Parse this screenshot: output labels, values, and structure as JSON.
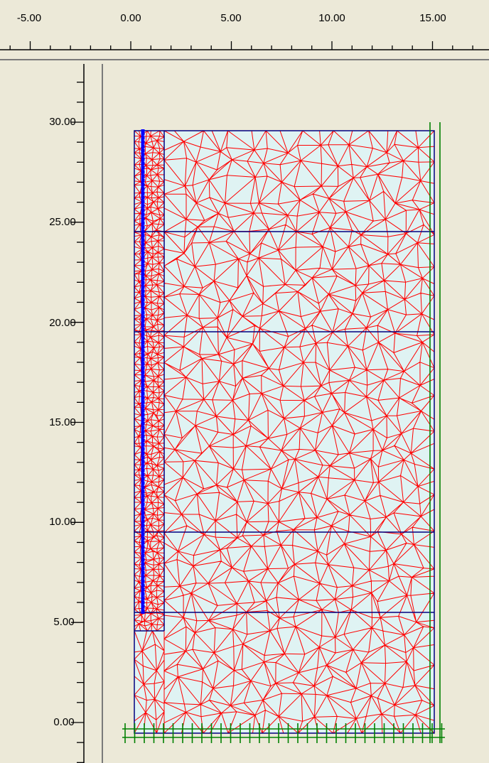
{
  "rulers": {
    "horizontal_labels": [
      "-5.00",
      "0.00",
      "5.00",
      "10.00",
      "15.00"
    ],
    "vertical_labels": [
      "30.00",
      "25.00",
      "20.00",
      "15.00",
      "10.00",
      "5.00",
      "0.00"
    ]
  },
  "model": {
    "boundary_color": "#000080",
    "mesh_color": "#ff0000",
    "plate_color": "#0000ff",
    "fixity_color": "#008000",
    "soil_fill": "#dff3f3",
    "layer_lines_y": [
      24.4,
      19.4,
      9.5,
      4.5
    ],
    "plate": {
      "x": 0.45,
      "top": 29.6,
      "bottom": 4.5
    },
    "extent": {
      "x_min": -0.5,
      "x_max": 14.7,
      "y_min": -0.6,
      "y_max": 29.5
    }
  }
}
